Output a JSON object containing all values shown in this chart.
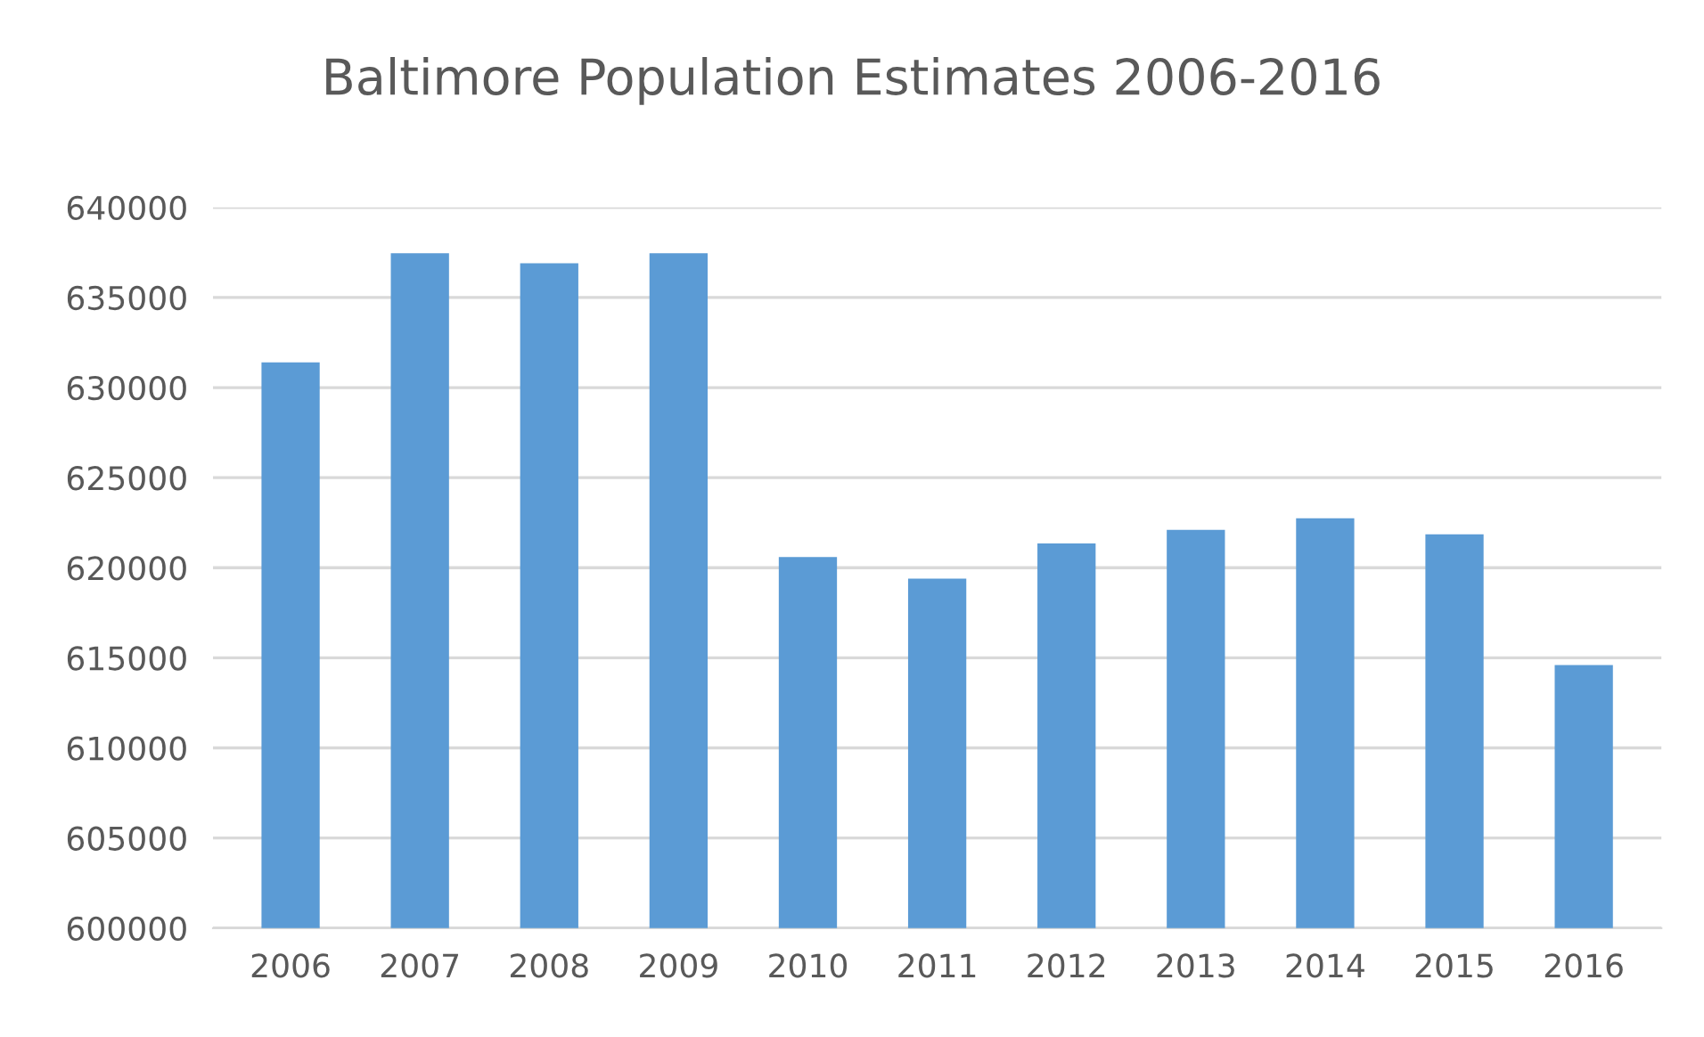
{
  "chart_data": {
    "type": "bar",
    "title": "Baltimore Population Estimates 2006-2016",
    "categories": [
      "2006",
      "2007",
      "2008",
      "2009",
      "2010",
      "2011",
      "2012",
      "2013",
      "2014",
      "2015",
      "2016"
    ],
    "values": [
      631400,
      637450,
      636900,
      637450,
      620600,
      619400,
      621350,
      622100,
      622750,
      621850,
      614600
    ],
    "color": "#5b9bd5",
    "ylim": [
      600000,
      640000
    ],
    "yticks": [
      600000,
      605000,
      610000,
      615000,
      620000,
      625000,
      630000,
      635000,
      640000
    ],
    "grid": "y",
    "legend": false
  }
}
